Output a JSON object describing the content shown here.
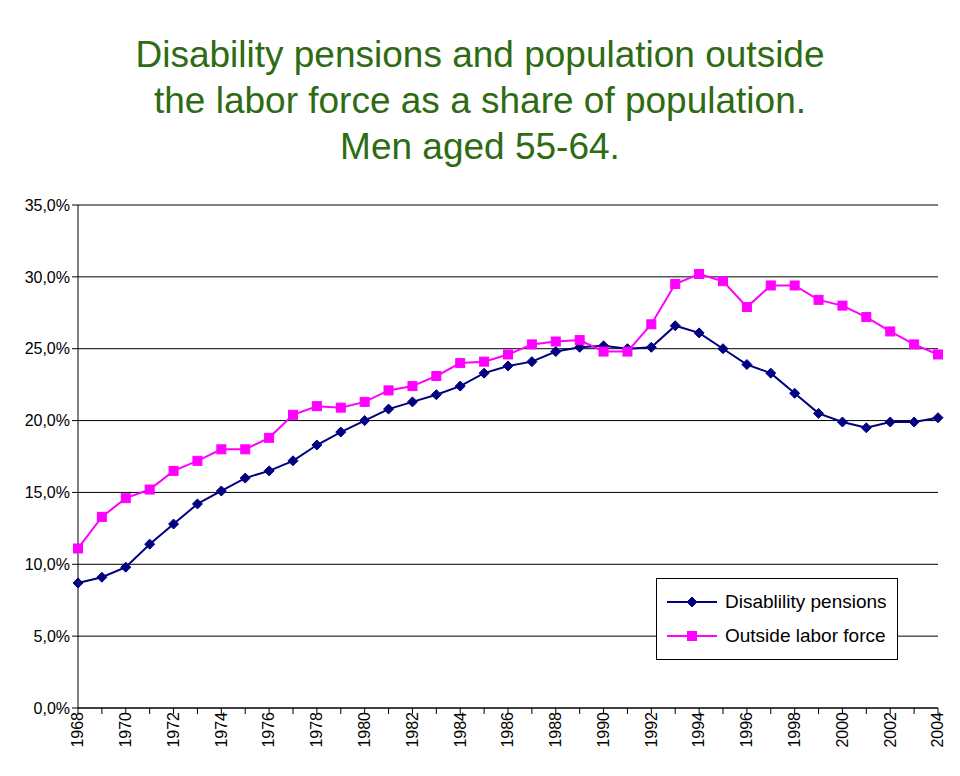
{
  "chart_data": {
    "type": "line",
    "title": "Disability pensions and population outside the labor force as a share of population. Men aged 55-64.",
    "categories": [
      "1968",
      null,
      "1970",
      null,
      "1972",
      null,
      "1974",
      null,
      "1976",
      null,
      "1978",
      null,
      "1980",
      null,
      "1982",
      null,
      "1984",
      null,
      "1986",
      null,
      "1988",
      null,
      "1990",
      null,
      "1992",
      null,
      "1994",
      null,
      "1996",
      null,
      "1998",
      null,
      "2000",
      null,
      "2002",
      null,
      "2004"
    ],
    "series": [
      {
        "name": "Disablility pensions",
        "color": "#000080",
        "marker": "diamond",
        "values": [
          8.7,
          9.1,
          9.8,
          11.4,
          12.8,
          14.2,
          15.1,
          16.0,
          16.5,
          17.2,
          18.3,
          19.2,
          20.0,
          20.8,
          21.3,
          21.8,
          22.4,
          23.3,
          23.8,
          24.1,
          24.8,
          25.1,
          25.2,
          25.0,
          25.1,
          26.6,
          26.1,
          25.0,
          23.9,
          23.3,
          21.9,
          20.5,
          19.9,
          19.5,
          19.9,
          19.9,
          20.2
        ]
      },
      {
        "name": "Outside labor force",
        "color": "#FF00FF",
        "marker": "square",
        "values": [
          11.1,
          13.3,
          14.6,
          15.2,
          16.5,
          17.2,
          18.0,
          18.0,
          18.8,
          20.4,
          21.0,
          20.9,
          21.3,
          22.1,
          22.4,
          23.1,
          24.0,
          24.1,
          24.6,
          25.3,
          25.5,
          25.6,
          24.8,
          24.8,
          26.7,
          29.5,
          30.2,
          29.7,
          27.9,
          29.4,
          29.4,
          28.4,
          28.0,
          27.2,
          26.2,
          25.3,
          24.6
        ]
      }
    ],
    "ylim": [
      0,
      35
    ],
    "yticks": [
      {
        "value": 0,
        "label": "0,0%"
      },
      {
        "value": 5,
        "label": "5,0%"
      },
      {
        "value": 10,
        "label": "10,0%"
      },
      {
        "value": 15,
        "label": "15,0%"
      },
      {
        "value": 20,
        "label": "20,0%"
      },
      {
        "value": 25,
        "label": "25,0%"
      },
      {
        "value": 30,
        "label": "30,0%"
      },
      {
        "value": 35,
        "label": "35,0%"
      }
    ],
    "grid": true,
    "legend": "lower right"
  }
}
